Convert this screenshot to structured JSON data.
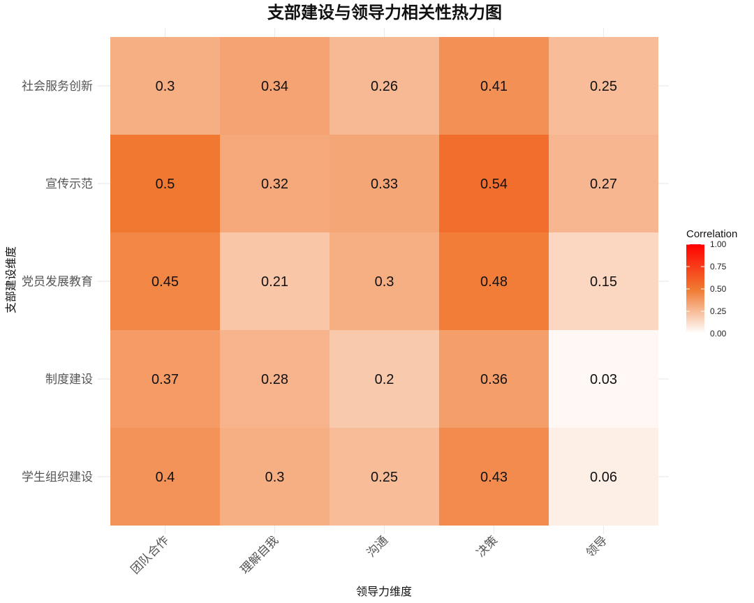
{
  "chart_data": {
    "type": "heatmap",
    "title": "支部建设与领导力相关性热力图",
    "xlabel": "领导力维度",
    "ylabel": "支部建设维度",
    "x_categories": [
      "团队合作",
      "理解自我",
      "沟通",
      "决策",
      "领导"
    ],
    "y_categories": [
      "社会服务创新",
      "宣传示范",
      "党员发展教育",
      "制度建设",
      "学生组织建设"
    ],
    "values": [
      [
        0.3,
        0.34,
        0.26,
        0.41,
        0.25
      ],
      [
        0.5,
        0.32,
        0.33,
        0.54,
        0.27
      ],
      [
        0.45,
        0.21,
        0.3,
        0.48,
        0.15
      ],
      [
        0.37,
        0.28,
        0.2,
        0.36,
        0.03
      ],
      [
        0.4,
        0.3,
        0.25,
        0.43,
        0.06
      ]
    ],
    "legend": {
      "title": "Correlation",
      "ticks": [
        "1.00",
        "0.75",
        "0.50",
        "0.25",
        "0.00"
      ],
      "range": [
        0,
        1
      ],
      "colors": {
        "low": "#ffffff",
        "mid": "#f07830",
        "high": "#ff0000"
      }
    },
    "grid": true
  }
}
